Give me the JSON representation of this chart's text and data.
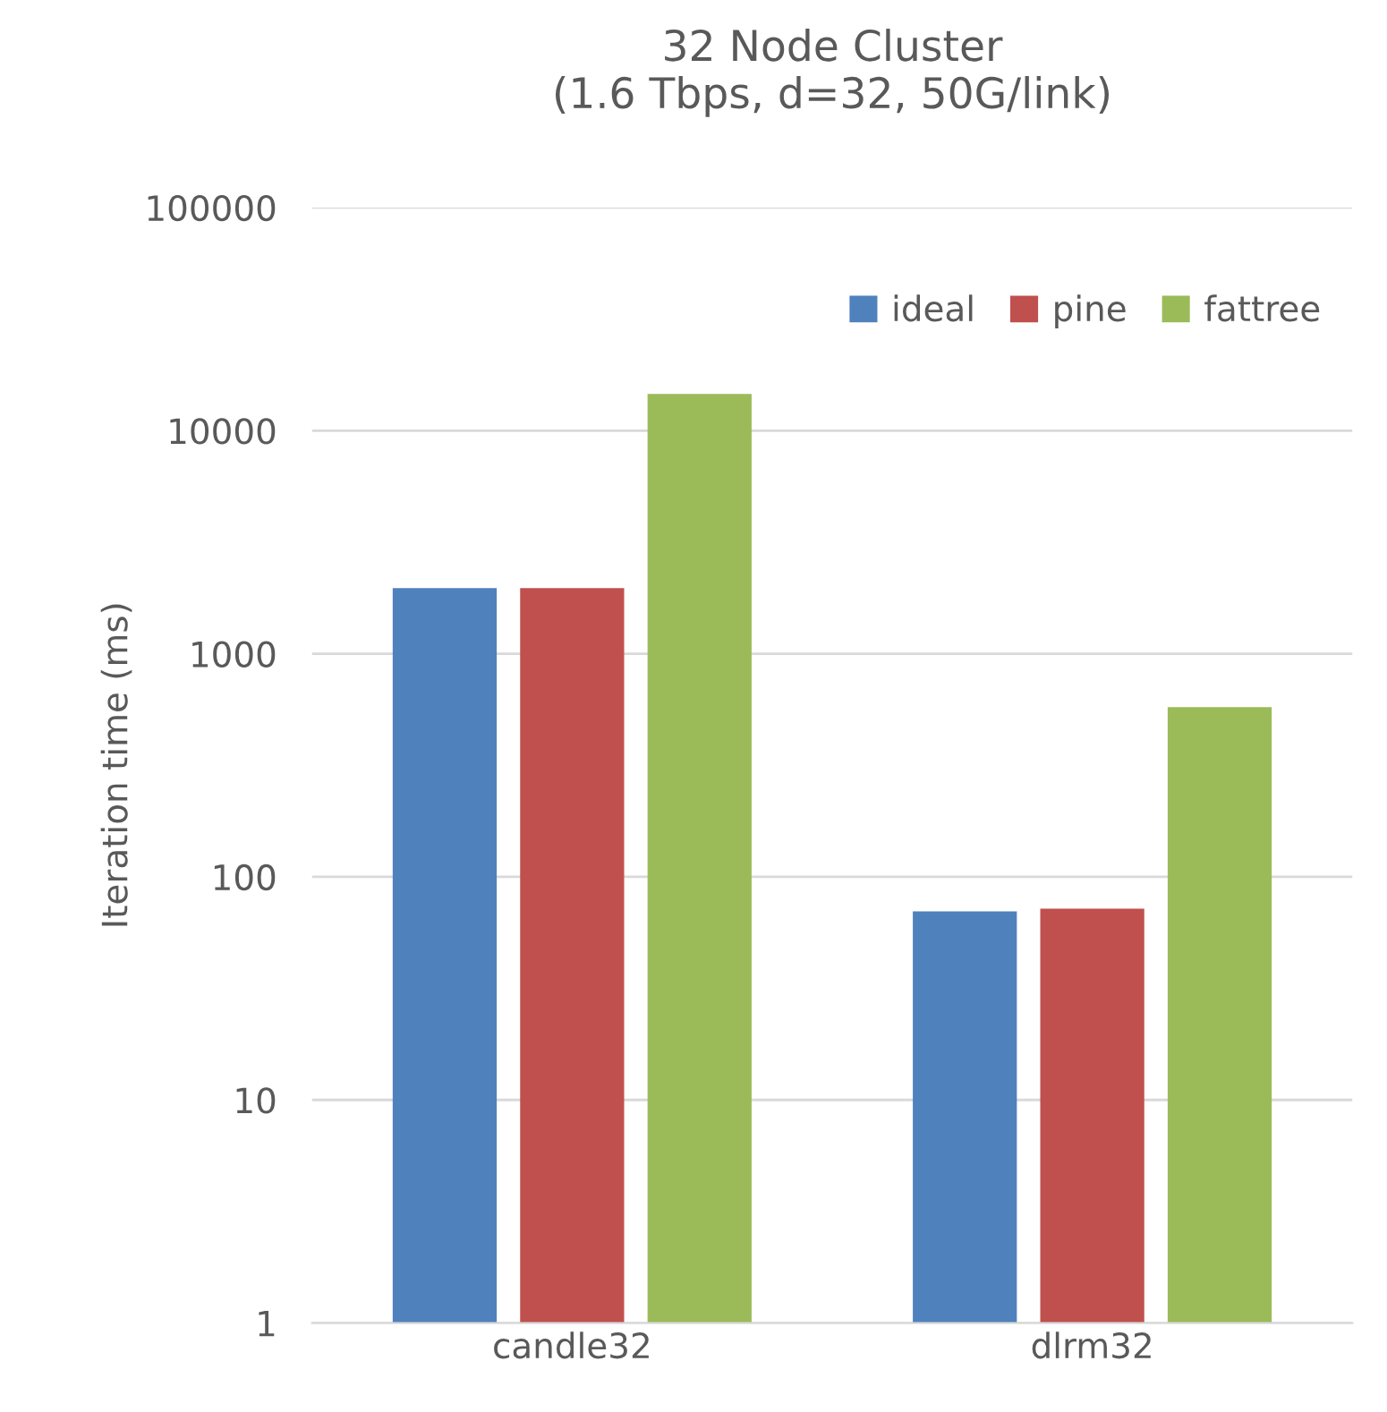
{
  "chart_data": {
    "type": "bar",
    "title": "32 Node Cluster\n(1.6 Tbps, d=32, 50G/link)",
    "ylabel": "Iteration time (ms)",
    "categories": [
      "candle32",
      "dlrm32"
    ],
    "series": [
      {
        "name": "ideal",
        "color": "#4f81bd",
        "values": [
          1970,
          70
        ]
      },
      {
        "name": "pine",
        "color": "#c0504d",
        "values": [
          1970,
          72
        ]
      },
      {
        "name": "fattree",
        "color": "#9bbb59",
        "values": [
          14600,
          577
        ]
      }
    ],
    "log": "y",
    "ylim": [
      1,
      100000
    ],
    "yticks": [
      1,
      10,
      100,
      1000,
      10000,
      100000
    ],
    "grid": "y",
    "legend": "top right"
  }
}
